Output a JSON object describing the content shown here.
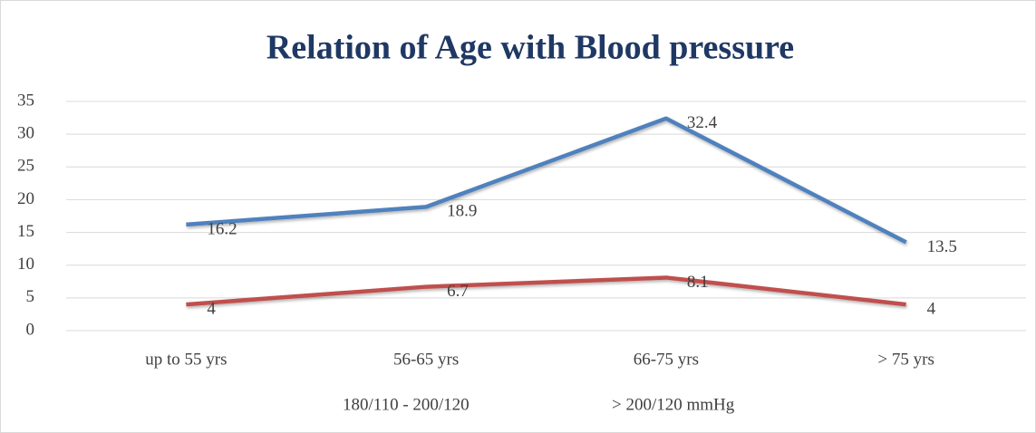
{
  "chart_data": {
    "type": "line",
    "title": "Relation of Age with Blood pressure",
    "categories": [
      "up to 55 yrs",
      "56-65 yrs",
      "66-75 yrs",
      "> 75 yrs"
    ],
    "series": [
      {
        "name": "180/110 - 200/120",
        "color": "#4f81bd",
        "values": [
          16.2,
          18.9,
          32.4,
          13.5
        ]
      },
      {
        "name": "> 200/120 mmHg",
        "color": "#c0504d",
        "values": [
          4,
          6.7,
          8.1,
          4
        ]
      }
    ],
    "ylim": [
      0,
      35
    ],
    "yticks": [
      0,
      5,
      10,
      15,
      20,
      25,
      30,
      35
    ],
    "grid": true,
    "legend": "bottom"
  }
}
